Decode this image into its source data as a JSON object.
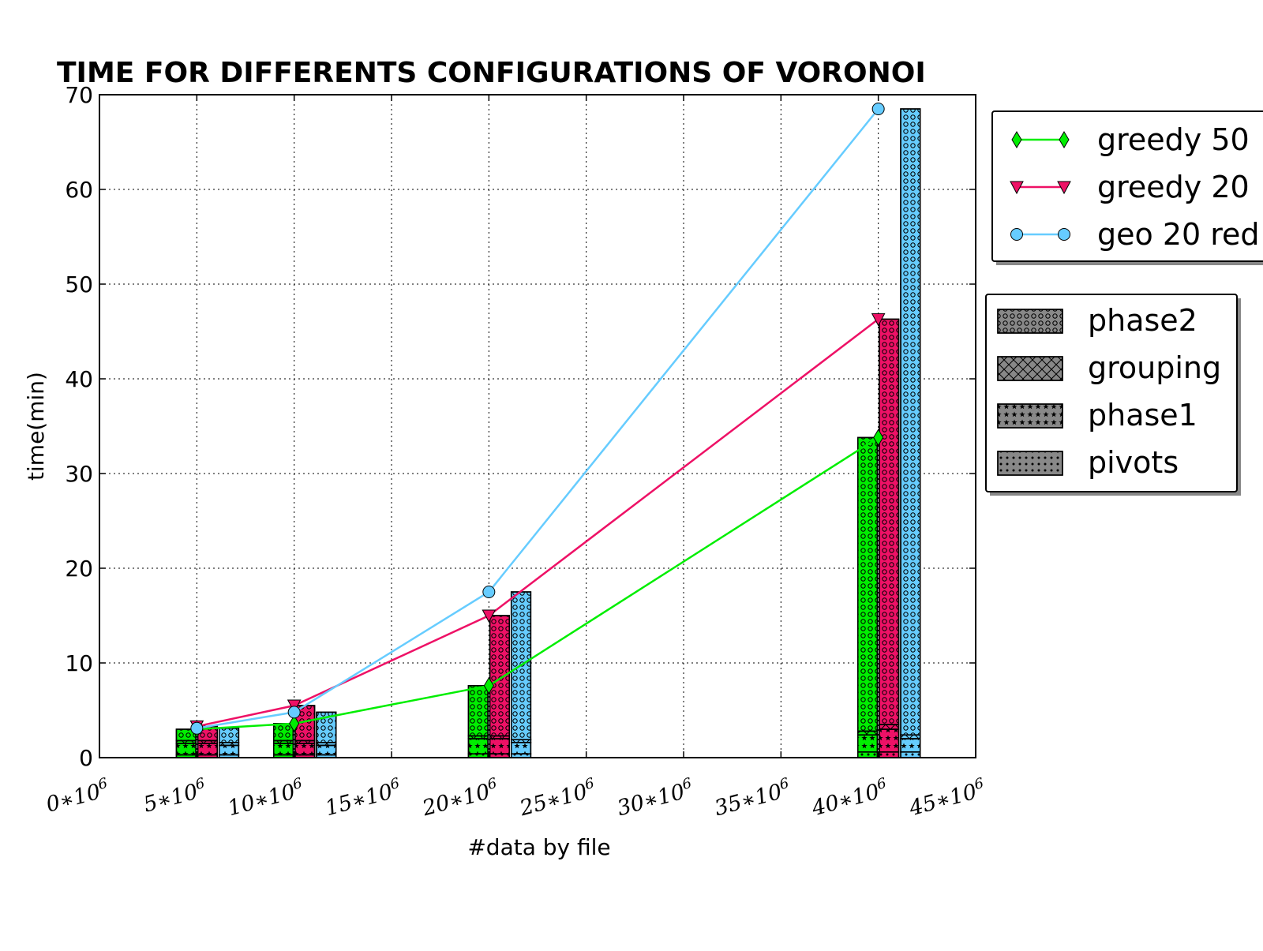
{
  "chart_data": {
    "type": "bar+line",
    "title": "TIME FOR DIFFERENTS CONFIGURATIONS OF VORONOI",
    "xlabel": "#data by file",
    "ylabel": "time(min)",
    "xlim": [
      0,
      45
    ],
    "ylim": [
      0,
      70
    ],
    "x_tick_values": [
      0,
      5,
      10,
      15,
      20,
      25,
      30,
      35,
      40,
      45
    ],
    "x_tick_labels": [
      {
        "coef": "0",
        "sym": "∗10",
        "exp": "6"
      },
      {
        "coef": "5",
        "sym": "∗10",
        "exp": "6"
      },
      {
        "coef": "10",
        "sym": "∗10",
        "exp": "6"
      },
      {
        "coef": "15",
        "sym": "∗10",
        "exp": "6"
      },
      {
        "coef": "20",
        "sym": "∗10",
        "exp": "6"
      },
      {
        "coef": "25",
        "sym": "∗10",
        "exp": "6"
      },
      {
        "coef": "30",
        "sym": "∗10",
        "exp": "6"
      },
      {
        "coef": "35",
        "sym": "∗10",
        "exp": "6"
      },
      {
        "coef": "40",
        "sym": "∗10",
        "exp": "6"
      },
      {
        "coef": "45",
        "sym": "∗10",
        "exp": "6"
      }
    ],
    "y_tick_values": [
      0,
      10,
      20,
      30,
      40,
      50,
      60,
      70
    ],
    "y_tick_labels": [
      "0",
      "10",
      "20",
      "30",
      "40",
      "50",
      "60",
      "70"
    ],
    "grid": true,
    "x": [
      5,
      10,
      20,
      40
    ],
    "line_series": [
      {
        "name": "greedy 50",
        "color": "#00ee00",
        "marker": "diamond",
        "values": [
          3.0,
          3.6,
          7.6,
          33.8
        ]
      },
      {
        "name": "greedy 20",
        "color": "#ee1166",
        "marker": "triangle-down",
        "values": [
          3.3,
          5.5,
          15.0,
          46.3
        ]
      },
      {
        "name": "geo 20 red",
        "color": "#66ccff",
        "marker": "circle",
        "values": [
          3.1,
          4.8,
          17.5,
          68.5
        ]
      }
    ],
    "bar_stacks": [
      {
        "series": "greedy 50",
        "color": "#00ee00",
        "x_offset": 0.55,
        "pivots": [
          0.3,
          0.3,
          0.4,
          0.6
        ],
        "phase1": [
          1.2,
          1.2,
          1.6,
          1.8
        ],
        "grouping": [
          0.3,
          0.3,
          0.3,
          0.4
        ],
        "phase2": [
          1.2,
          1.8,
          5.3,
          31.0
        ]
      },
      {
        "series": "greedy 20",
        "color": "#ee1166",
        "x_offset": 1.65,
        "pivots": [
          0.3,
          0.3,
          0.4,
          0.6
        ],
        "phase1": [
          1.2,
          1.2,
          1.6,
          2.4
        ],
        "grouping": [
          0.3,
          0.3,
          0.3,
          0.5
        ],
        "phase2": [
          1.5,
          3.7,
          12.7,
          42.8
        ]
      },
      {
        "series": "geo 20 red",
        "color": "#66ccff",
        "x_offset": 2.75,
        "pivots": [
          0.3,
          0.3,
          0.4,
          0.6
        ],
        "phase1": [
          1.0,
          1.0,
          1.2,
          1.4
        ],
        "grouping": [
          0.3,
          0.3,
          0.3,
          0.4
        ],
        "phase2": [
          1.5,
          3.2,
          15.6,
          66.1
        ]
      }
    ],
    "line_legend": {
      "placement": "outside-right-top",
      "entries": [
        "greedy 50",
        "greedy 20",
        "geo 20 red"
      ]
    },
    "phase_legend": {
      "placement": "outside-right-middle",
      "entries": [
        "phase2",
        "grouping",
        "phase1",
        "pivots"
      ]
    }
  }
}
